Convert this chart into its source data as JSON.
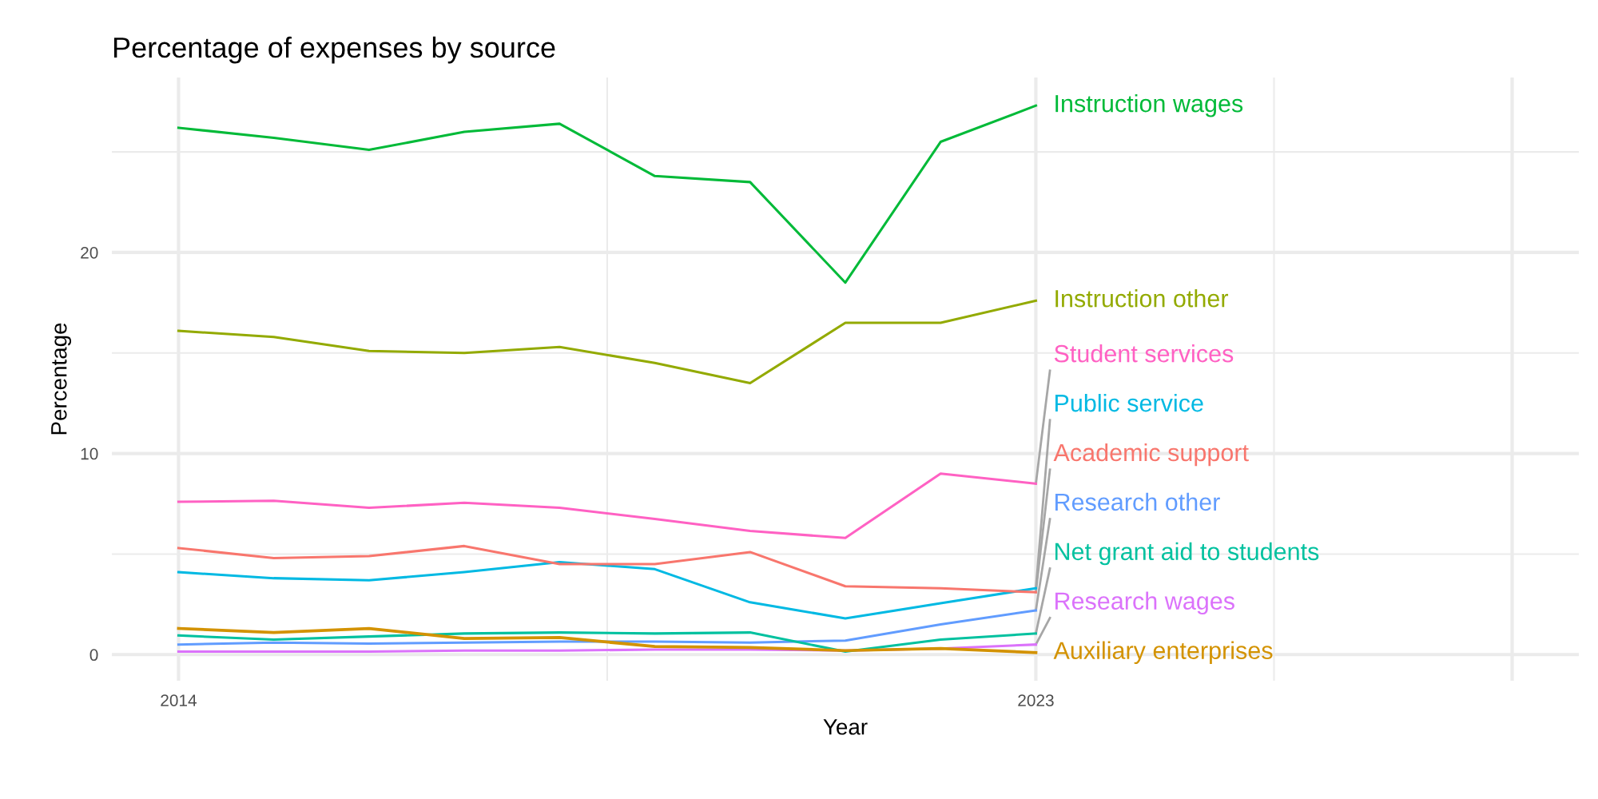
{
  "chart_data": {
    "type": "line",
    "title": "Percentage of expenses by source",
    "xlabel": "Year",
    "ylabel": "Percentage",
    "x": [
      2014,
      2015,
      2016,
      2017,
      2018,
      2019,
      2020,
      2021,
      2022,
      2023
    ],
    "series": [
      {
        "name": "Academic support",
        "color": "#f8766d",
        "values": [
          5.3,
          4.8,
          4.9,
          5.4,
          4.5,
          4.5,
          5.1,
          3.4,
          3.3,
          3.1
        ]
      },
      {
        "name": "Auxiliary enterprises",
        "color": "#d39200",
        "values": [
          1.3,
          1.1,
          1.3,
          0.8,
          0.85,
          0.4,
          0.35,
          0.2,
          0.3,
          0.1
        ]
      },
      {
        "name": "Instruction other",
        "color": "#93aa00",
        "values": [
          16.1,
          15.8,
          15.1,
          15.0,
          15.3,
          14.5,
          13.5,
          16.5,
          16.5,
          17.6
        ]
      },
      {
        "name": "Instruction wages",
        "color": "#00ba38",
        "values": [
          26.2,
          25.7,
          25.1,
          26.0,
          26.4,
          23.8,
          23.5,
          18.5,
          25.5,
          27.3
        ]
      },
      {
        "name": "Net grant aid to students",
        "color": "#00c19f",
        "values": [
          0.95,
          0.75,
          0.9,
          1.05,
          1.1,
          1.05,
          1.1,
          0.15,
          0.75,
          1.05
        ]
      },
      {
        "name": "Public service",
        "color": "#00b9e3",
        "values": [
          4.1,
          3.8,
          3.7,
          4.1,
          4.6,
          4.25,
          2.6,
          1.8,
          2.55,
          3.3
        ]
      },
      {
        "name": "Research other",
        "color": "#619cff",
        "values": [
          0.5,
          0.6,
          0.55,
          0.6,
          0.65,
          0.65,
          0.6,
          0.7,
          1.5,
          2.2
        ]
      },
      {
        "name": "Research wages",
        "color": "#db72fb",
        "values": [
          0.15,
          0.15,
          0.15,
          0.2,
          0.2,
          0.25,
          0.25,
          0.2,
          0.3,
          0.5
        ]
      },
      {
        "name": "Student services",
        "color": "#ff61c3",
        "values": [
          7.6,
          7.65,
          7.3,
          7.55,
          7.3,
          6.75,
          6.15,
          5.8,
          9.0,
          8.5
        ]
      }
    ],
    "xlim": [
      2013.3,
      2028.7
    ],
    "xticks": [
      2014,
      {
        "value": 2018.5,
        "label": null
      },
      2023,
      {
        "value": 2025.5,
        "label": null
      },
      {
        "value": 2028,
        "label": null
      }
    ],
    "ylim": [
      -1.3,
      28.7
    ],
    "yticks": [
      0,
      {
        "value": 5,
        "label": null
      },
      10,
      {
        "value": 15,
        "label": null
      },
      20,
      {
        "value": 25,
        "label": null
      }
    ],
    "grid": true,
    "marker": "none",
    "line_style": "solid"
  }
}
